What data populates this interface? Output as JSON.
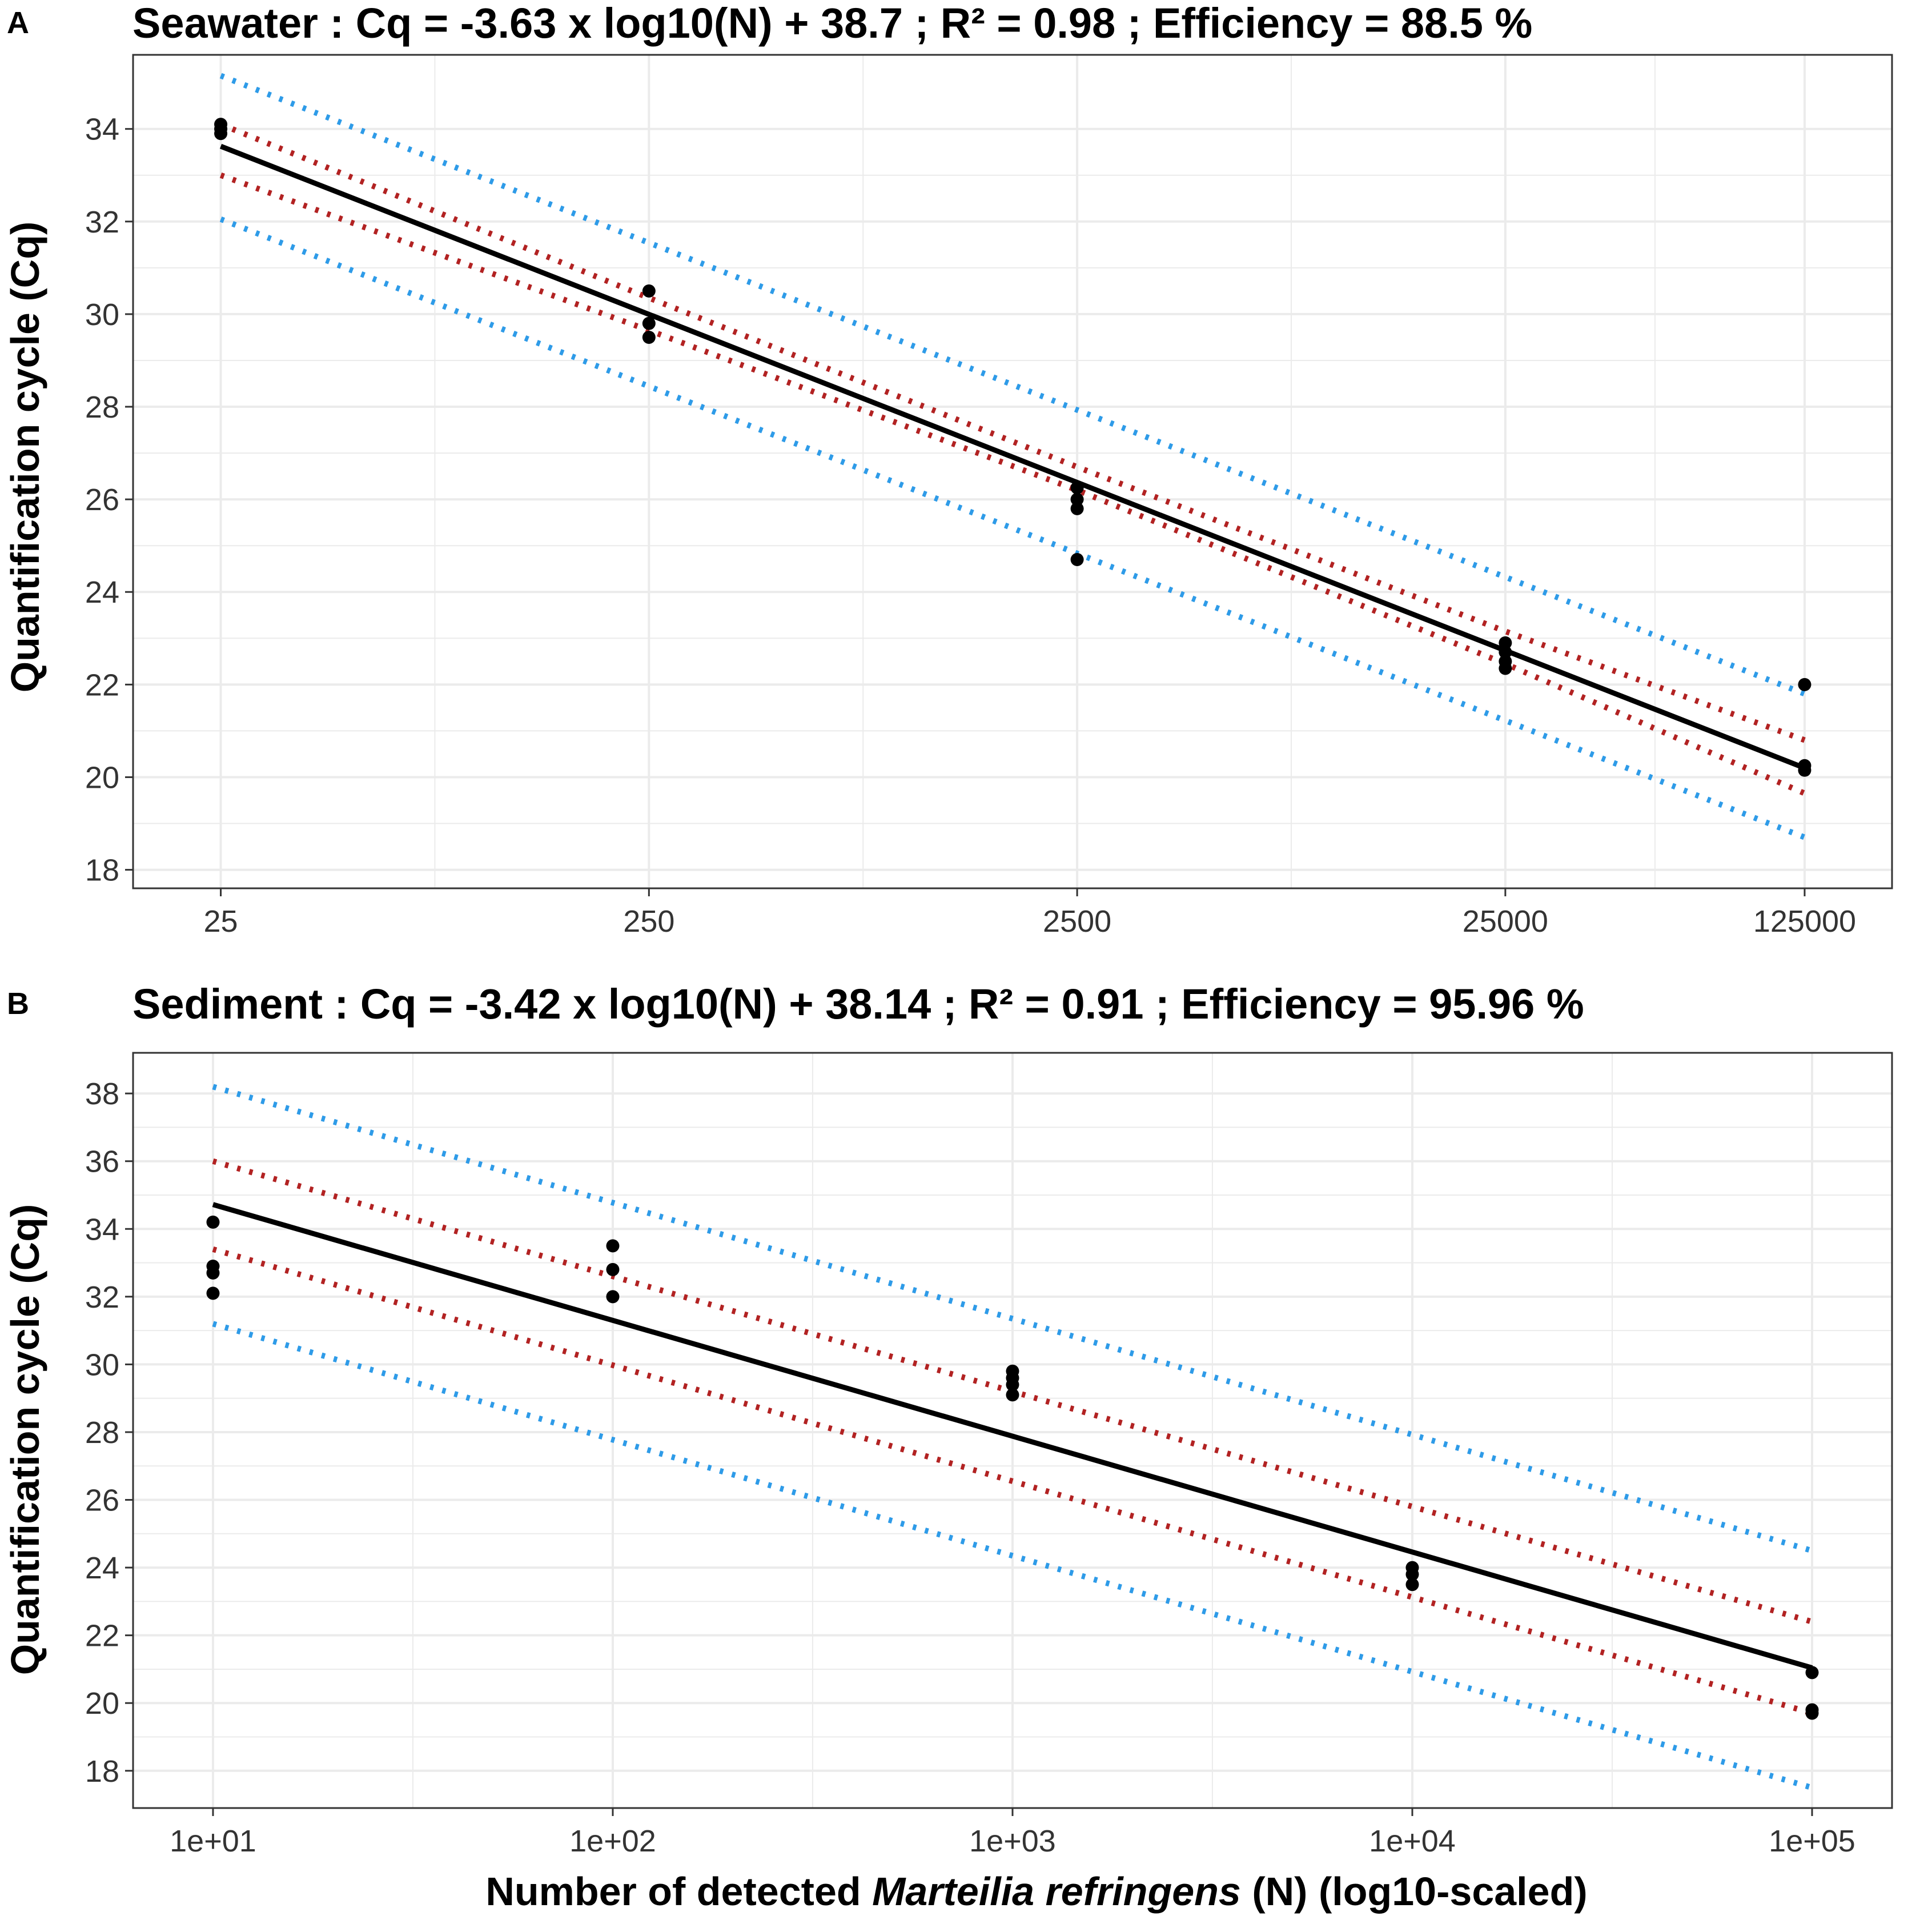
{
  "figure": {
    "xlabel_pre": "Number of detected ",
    "xlabel_species": "Marteilia refringens",
    "xlabel_post": " (N) (log10-scaled)"
  },
  "colors": {
    "fit": "#000000",
    "confidence_band": "#B22222",
    "prediction_band": "#2E9BE8",
    "points": "#000000",
    "grid": "#EBEBEB",
    "panel_border": "#333333"
  },
  "chart_data": [
    {
      "id": "A",
      "panel_label": "A",
      "type": "scatter",
      "title": "Seawater : Cq = -3.63 x log10(N) + 38.7 ; R² = 0.98 ; Efficiency = 88.5 %",
      "xlabel": "",
      "ylabel": "Quantification cycle (Cq)",
      "x_scale": "log10",
      "xlim": [
        15.6,
        200000
      ],
      "ylim": [
        17.6,
        35.6
      ],
      "x_ticks": [
        25,
        250,
        2500,
        25000,
        125000
      ],
      "x_tick_labels": [
        "25",
        "250",
        "2500",
        "25000",
        "125000"
      ],
      "x_minor": [
        79.06,
        790.6,
        7906,
        55902
      ],
      "y_ticks": [
        18,
        20,
        22,
        24,
        26,
        28,
        30,
        32,
        34
      ],
      "y_tick_labels": [
        "18",
        "20",
        "22",
        "24",
        "26",
        "28",
        "30",
        "32",
        "34"
      ],
      "fit": {
        "slope": -3.63,
        "intercept": 38.7,
        "x_range": [
          25,
          125000
        ]
      },
      "confidence_band": {
        "upper": [
          [
            25,
            34.1
          ],
          [
            250,
            30.35
          ],
          [
            2500,
            26.7
          ],
          [
            25000,
            23.15
          ],
          [
            125000,
            20.8
          ]
        ],
        "lower": [
          [
            25,
            33.0
          ],
          [
            250,
            29.65
          ],
          [
            2500,
            26.2
          ],
          [
            25000,
            22.45
          ],
          [
            125000,
            19.65
          ]
        ]
      },
      "prediction_band": {
        "upper": [
          [
            25,
            35.15
          ],
          [
            125000,
            21.8
          ]
        ],
        "lower": [
          [
            25,
            32.05
          ],
          [
            125000,
            18.7
          ]
        ]
      },
      "points": [
        [
          25,
          34.1
        ],
        [
          25,
          34.0
        ],
        [
          25,
          33.9
        ],
        [
          250,
          30.5
        ],
        [
          250,
          29.8
        ],
        [
          250,
          29.5
        ],
        [
          2500,
          26.25
        ],
        [
          2500,
          26.0
        ],
        [
          2500,
          25.8
        ],
        [
          2500,
          24.7
        ],
        [
          25000,
          22.9
        ],
        [
          25000,
          22.7
        ],
        [
          25000,
          22.5
        ],
        [
          25000,
          22.35
        ],
        [
          125000,
          22.0
        ],
        [
          125000,
          20.25
        ],
        [
          125000,
          20.15
        ]
      ]
    },
    {
      "id": "B",
      "panel_label": "B",
      "type": "scatter",
      "title": "Sediment : Cq = -3.42 x log10(N) + 38.14 ; R² = 0.91 ; Efficiency = 95.96 %",
      "xlabel": "Number of detected Marteilia refringens (N) (log10-scaled)",
      "ylabel": "Quantification cycle (Cq)",
      "x_scale": "log10",
      "xlim": [
        6.31,
        158489
      ],
      "ylim": [
        16.9,
        39.2
      ],
      "x_ticks": [
        10,
        100,
        1000,
        10000,
        100000
      ],
      "x_tick_labels": [
        "1e+01",
        "1e+02",
        "1e+03",
        "1e+04",
        "1e+05"
      ],
      "x_minor": [
        31.62,
        316.2,
        3162,
        31623
      ],
      "y_ticks": [
        18,
        20,
        22,
        24,
        26,
        28,
        30,
        32,
        34,
        36,
        38
      ],
      "y_tick_labels": [
        "18",
        "20",
        "22",
        "24",
        "26",
        "28",
        "30",
        "32",
        "34",
        "36",
        "38"
      ],
      "fit": {
        "slope": -3.42,
        "intercept": 38.14,
        "x_range": [
          10,
          100000
        ]
      },
      "confidence_band": {
        "upper": [
          [
            10,
            36.0
          ],
          [
            100000,
            22.4
          ]
        ],
        "lower": [
          [
            10,
            33.4
          ],
          [
            100000,
            19.7
          ]
        ]
      },
      "prediction_band": {
        "upper": [
          [
            10,
            38.2
          ],
          [
            100000,
            24.5
          ]
        ],
        "lower": [
          [
            10,
            31.2
          ],
          [
            100000,
            17.5
          ]
        ]
      },
      "points": [
        [
          10,
          34.2
        ],
        [
          10,
          32.9
        ],
        [
          10,
          32.7
        ],
        [
          10,
          32.1
        ],
        [
          100,
          33.5
        ],
        [
          100,
          32.8
        ],
        [
          100,
          32.0
        ],
        [
          1000,
          29.8
        ],
        [
          1000,
          29.6
        ],
        [
          1000,
          29.4
        ],
        [
          1000,
          29.1
        ],
        [
          10000,
          24.0
        ],
        [
          10000,
          23.8
        ],
        [
          10000,
          23.5
        ],
        [
          100000,
          20.9
        ],
        [
          100000,
          19.8
        ],
        [
          100000,
          19.7
        ]
      ]
    }
  ]
}
